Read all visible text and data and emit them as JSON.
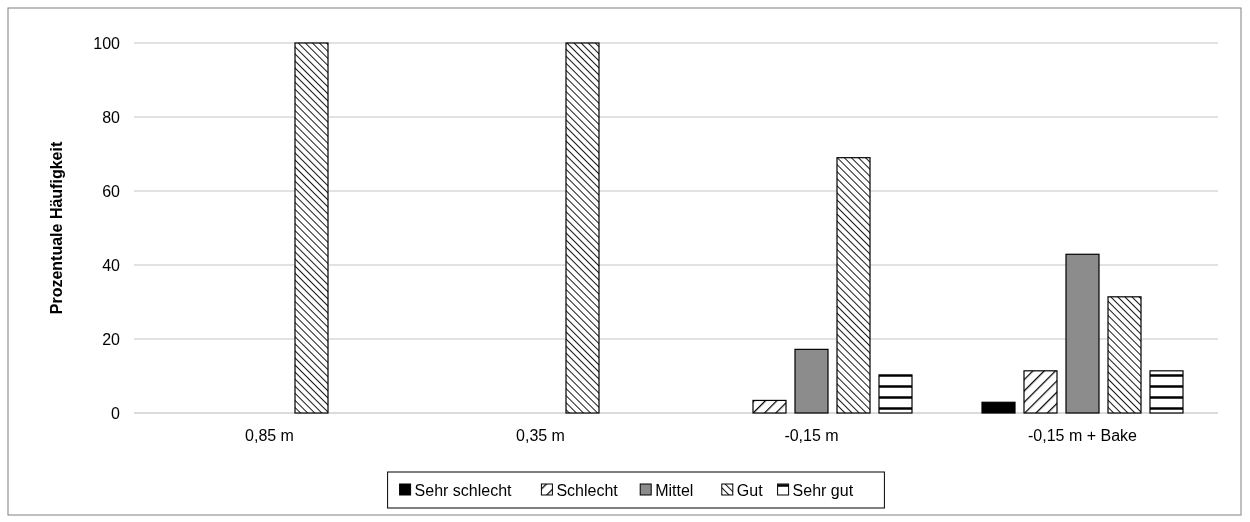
{
  "chart_data": {
    "type": "bar",
    "ylabel": "Prozentuale Häufigkeit",
    "categories": [
      "0,85 m",
      "0,35 m",
      "-0,15 m",
      "-0,15 m + Bake"
    ],
    "series": [
      {
        "name": "Sehr schlecht",
        "color": "#000000",
        "values": [
          0,
          0,
          0,
          2.9
        ]
      },
      {
        "name": "Schlecht",
        "color": "#000000",
        "values": [
          0,
          0,
          3.4,
          11.4
        ]
      },
      {
        "name": "Mittel",
        "color": "#8c8c8c",
        "values": [
          0,
          0,
          17.2,
          42.9
        ]
      },
      {
        "name": "Gut",
        "color": "#000000",
        "values": [
          100,
          100,
          69,
          31.4
        ]
      },
      {
        "name": "Sehr gut",
        "color": "#000000",
        "values": [
          0,
          0,
          10.3,
          11.4
        ]
      }
    ],
    "ylim": [
      0,
      100
    ],
    "yticks": [
      0,
      20,
      40,
      60,
      80,
      100
    ],
    "grid": "y",
    "legend": "bottom"
  }
}
